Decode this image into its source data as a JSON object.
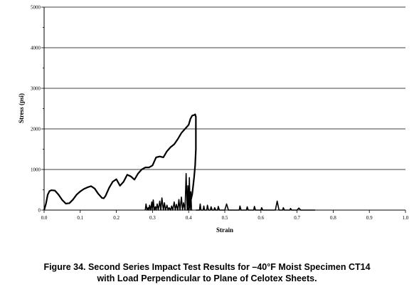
{
  "caption": {
    "line1": "Figure 34.  Second Series Impact Test Results for –40°F Moist Specimen CT14",
    "line2": "with Load Perpendicular to Plane of Celotex Sheets."
  },
  "chart_data": {
    "type": "line",
    "title": "",
    "xlabel": "Strain",
    "ylabel": "Stress (psi)",
    "xlim": [
      0.0,
      1.0
    ],
    "ylim": [
      0,
      5000
    ],
    "x_ticks": [
      0.0,
      0.1,
      0.2,
      0.3,
      0.4,
      0.5,
      0.6,
      0.7,
      0.8,
      0.9,
      1.0
    ],
    "x_tick_labels": [
      "0.0",
      "0.1",
      "0.2",
      "0.3",
      "0.4",
      "0.5",
      "0.6",
      "0.7",
      "0.8",
      "0.9",
      "1.0"
    ],
    "y_ticks": [
      0,
      1000,
      2000,
      3000,
      4000,
      5000
    ],
    "y_tick_labels": [
      "0",
      "1000",
      "2000",
      "3000",
      "4000",
      "5000"
    ],
    "grid": "horizontal",
    "legend": "none",
    "line_color": "#000000",
    "series": [
      {
        "x": [
          0.0,
          0.005,
          0.01,
          0.015,
          0.02,
          0.03,
          0.04,
          0.05,
          0.06,
          0.07,
          0.08,
          0.09,
          0.1,
          0.11,
          0.12,
          0.13,
          0.14,
          0.15,
          0.16,
          0.165,
          0.17,
          0.18,
          0.19,
          0.2,
          0.21,
          0.22,
          0.23,
          0.24,
          0.25,
          0.26,
          0.27,
          0.28,
          0.29,
          0.3,
          0.31,
          0.32,
          0.33,
          0.34,
          0.35,
          0.36,
          0.37,
          0.38,
          0.39,
          0.4,
          0.405,
          0.41,
          0.415,
          0.418,
          0.42,
          0.42,
          0.418,
          0.415,
          0.41,
          0.405,
          0.4,
          0.398
        ],
        "y": [
          0,
          150,
          380,
          470,
          490,
          480,
          380,
          250,
          160,
          170,
          260,
          380,
          460,
          520,
          560,
          590,
          530,
          400,
          300,
          290,
          350,
          550,
          700,
          760,
          600,
          700,
          870,
          830,
          750,
          900,
          1000,
          1050,
          1050,
          1100,
          1300,
          1320,
          1300,
          1450,
          1550,
          1620,
          1750,
          1900,
          2000,
          2100,
          2250,
          2330,
          2340,
          2360,
          2300,
          1500,
          1100,
          800,
          400,
          200,
          50,
          0
        ]
      },
      {
        "x": [
          0.28,
          0.282,
          0.285,
          0.288,
          0.29,
          0.292,
          0.295,
          0.298,
          0.3,
          0.302,
          0.305,
          0.308,
          0.31,
          0.313,
          0.316,
          0.32,
          0.323,
          0.326,
          0.33,
          0.333,
          0.336,
          0.34,
          0.343,
          0.346,
          0.35,
          0.353,
          0.356,
          0.36,
          0.363,
          0.366,
          0.37,
          0.373,
          0.376,
          0.38,
          0.383,
          0.386,
          0.39,
          0.393,
          0.396,
          0.398,
          0.4,
          0.402,
          0.404,
          0.406,
          0.408,
          0.41
        ],
        "y": [
          0,
          150,
          0,
          60,
          0,
          120,
          0,
          200,
          0,
          250,
          0,
          80,
          0,
          150,
          0,
          220,
          0,
          300,
          0,
          180,
          0,
          120,
          0,
          60,
          0,
          100,
          0,
          200,
          0,
          140,
          0,
          260,
          0,
          320,
          0,
          180,
          0,
          900,
          0,
          600,
          0,
          800,
          0,
          450,
          0,
          0
        ]
      },
      {
        "x": [
          0.42,
          0.43,
          0.432,
          0.434,
          0.436,
          0.44,
          0.442,
          0.444,
          0.446,
          0.45,
          0.452,
          0.455,
          0.46,
          0.462,
          0.465,
          0.47,
          0.472,
          0.475,
          0.48,
          0.482,
          0.485,
          0.5,
          0.505,
          0.51,
          0.52,
          0.53,
          0.54,
          0.542,
          0.545,
          0.56,
          0.562,
          0.565,
          0.58,
          0.582,
          0.585,
          0.6,
          0.602,
          0.605,
          0.62,
          0.64,
          0.645,
          0.65,
          0.66,
          0.662,
          0.665,
          0.68,
          0.682,
          0.685,
          0.7,
          0.705,
          0.71,
          0.75
        ],
        "y": [
          0,
          0,
          150,
          0,
          0,
          0,
          100,
          0,
          0,
          0,
          120,
          0,
          0,
          80,
          0,
          0,
          60,
          0,
          0,
          90,
          0,
          0,
          150,
          0,
          0,
          0,
          0,
          100,
          0,
          0,
          80,
          0,
          0,
          90,
          0,
          0,
          60,
          0,
          0,
          0,
          220,
          0,
          0,
          60,
          0,
          0,
          40,
          0,
          0,
          50,
          0,
          0
        ]
      }
    ]
  }
}
